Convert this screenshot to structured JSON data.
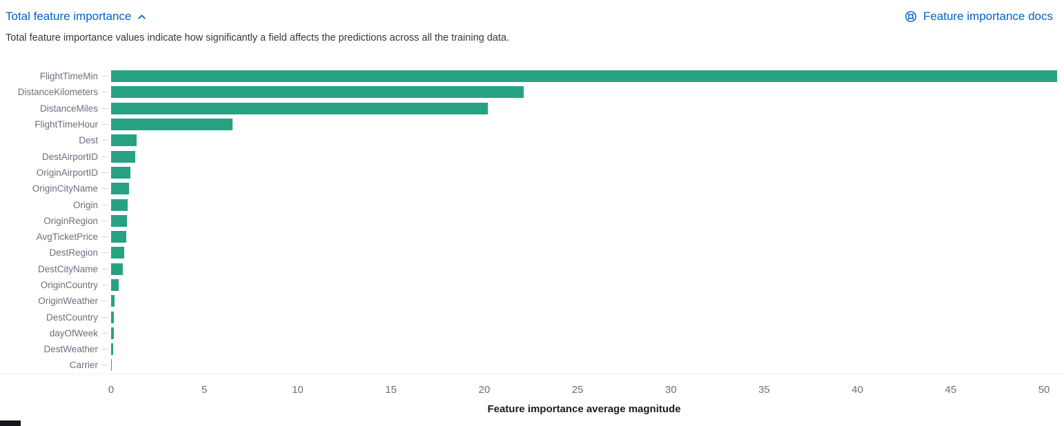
{
  "header": {
    "title": "Total feature importance",
    "docs_link": "Feature importance docs"
  },
  "description": "Total feature importance values indicate how significantly a field affects the predictions across all the training data.",
  "colors": {
    "link_blue": "#0061c6",
    "bar_teal": "#26a283",
    "axis_text": "#69707d",
    "body_text": "#343741"
  },
  "chart_data": {
    "type": "bar",
    "orientation": "horizontal",
    "title": "Total feature importance",
    "xlabel": "Feature importance average magnitude",
    "ylabel": "",
    "categories": [
      "FlightTimeMin",
      "DistanceKilometers",
      "DistanceMiles",
      "FlightTimeHour",
      "Dest",
      "DestAirportID",
      "OriginAirportID",
      "OriginCityName",
      "Origin",
      "OriginRegion",
      "AvgTicketPrice",
      "DestRegion",
      "DestCityName",
      "OriginCountry",
      "OriginWeather",
      "DestCountry",
      "dayOfWeek",
      "DestWeather",
      "Carrier"
    ],
    "values": [
      50.7,
      22.1,
      20.2,
      6.5,
      1.35,
      1.3,
      1.05,
      0.95,
      0.9,
      0.85,
      0.8,
      0.7,
      0.62,
      0.42,
      0.18,
      0.16,
      0.13,
      0.1,
      0.03
    ],
    "x_ticks": [
      0,
      5,
      10,
      15,
      20,
      25,
      30,
      35,
      40,
      45,
      50
    ],
    "xlim": [
      0,
      50.7
    ],
    "bar_color": "#26a283",
    "grid": false,
    "legend": false
  }
}
